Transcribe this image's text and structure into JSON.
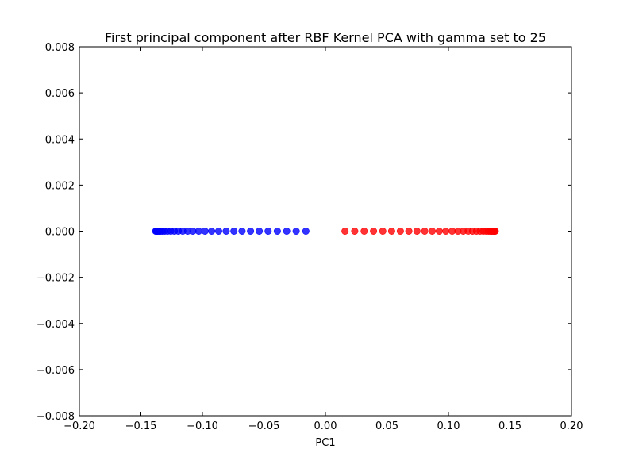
{
  "chart_data": {
    "type": "scatter",
    "title": "First principal component after RBF Kernel PCA with gamma set to 25",
    "xlabel": "PC1",
    "ylabel": "",
    "xlim": [
      -0.2,
      0.2
    ],
    "ylim": [
      -0.008,
      0.008
    ],
    "xticks": [
      -0.2,
      -0.15,
      -0.1,
      -0.05,
      0.0,
      0.05,
      0.1,
      0.15,
      0.2
    ],
    "xtick_labels": [
      "−0.20",
      "−0.15",
      "−0.10",
      "−0.05",
      "0.00",
      "0.05",
      "0.10",
      "0.15",
      "0.20"
    ],
    "yticks": [
      0.008,
      0.006,
      0.004,
      0.002,
      0.0,
      -0.002,
      -0.004,
      -0.006,
      -0.008
    ],
    "ytick_labels": [
      "0.008",
      "0.006",
      "0.004",
      "0.002",
      "0.000",
      "−0.002",
      "−0.004",
      "−0.006",
      "−0.008"
    ],
    "grid": false,
    "series": [
      {
        "color": "#0000ff",
        "x": [
          -0.138,
          -0.1375,
          -0.137,
          -0.1362,
          -0.1352,
          -0.134,
          -0.1325,
          -0.1306,
          -0.1283,
          -0.1257,
          -0.1228,
          -0.1196,
          -0.116,
          -0.112,
          -0.1077,
          -0.103,
          -0.0979,
          -0.0925,
          -0.0868,
          -0.0807,
          -0.0744,
          -0.0678,
          -0.0609,
          -0.0538,
          -0.0466,
          -0.0391,
          -0.0315,
          -0.0238,
          -0.0159
        ],
        "y": [
          0,
          0,
          0,
          0,
          0,
          0,
          0,
          0,
          0,
          0,
          0,
          0,
          0,
          0,
          0,
          0,
          0,
          0,
          0,
          0,
          0,
          0,
          0,
          0,
          0,
          0,
          0,
          0,
          0
        ]
      },
      {
        "color": "#ff0000",
        "x": [
          0.0159,
          0.0238,
          0.0315,
          0.0391,
          0.0466,
          0.0538,
          0.0609,
          0.0678,
          0.0744,
          0.0807,
          0.0868,
          0.0925,
          0.0979,
          0.103,
          0.1077,
          0.112,
          0.116,
          0.1196,
          0.1228,
          0.1257,
          0.1283,
          0.1306,
          0.1325,
          0.134,
          0.1352,
          0.1362,
          0.137,
          0.1375,
          0.138
        ],
        "y": [
          0,
          0,
          0,
          0,
          0,
          0,
          0,
          0,
          0,
          0,
          0,
          0,
          0,
          0,
          0,
          0,
          0,
          0,
          0,
          0,
          0,
          0,
          0,
          0,
          0,
          0,
          0,
          0,
          0
        ]
      }
    ]
  }
}
